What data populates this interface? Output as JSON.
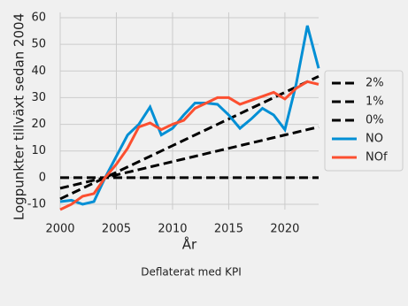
{
  "chart_data": {
    "type": "line",
    "ylabel": "Logpunkter tillväxt sedan 2004",
    "xlabel": "År",
    "note": "Deflaterat med KPI",
    "x": [
      2000,
      2001,
      2002,
      2003,
      2004,
      2005,
      2006,
      2007,
      2008,
      2009,
      2010,
      2011,
      2012,
      2013,
      2014,
      2015,
      2016,
      2017,
      2018,
      2019,
      2020,
      2021,
      2022,
      2023
    ],
    "series": [
      {
        "name": "2%",
        "color": "#000000",
        "linestyle": "dashed",
        "values": [
          -8,
          -6,
          -4,
          -2,
          0,
          2,
          4,
          6,
          8,
          10,
          12,
          14,
          16,
          18,
          20,
          22,
          24,
          26,
          28,
          30,
          32,
          34,
          36,
          38
        ]
      },
      {
        "name": "1%",
        "color": "#000000",
        "linestyle": "dashed",
        "values": [
          -4,
          -3,
          -2,
          -1,
          0,
          1,
          2,
          3,
          4,
          5,
          6,
          7,
          8,
          9,
          10,
          11,
          12,
          13,
          14,
          15,
          16,
          17,
          18,
          19
        ]
      },
      {
        "name": "0%",
        "color": "#000000",
        "linestyle": "dashed",
        "values": [
          0,
          0,
          0,
          0,
          0,
          0,
          0,
          0,
          0,
          0,
          0,
          0,
          0,
          0,
          0,
          0,
          0,
          0,
          0,
          0,
          0,
          0,
          0,
          0
        ]
      },
      {
        "name": "NO",
        "color": "#008fd5",
        "linestyle": "solid",
        "values": [
          -9,
          -8.5,
          -10,
          -9,
          0,
          8,
          16,
          20,
          26.5,
          16,
          18.5,
          23.5,
          28,
          28,
          27.5,
          23.5,
          18.5,
          22,
          26,
          23.5,
          18,
          35,
          57,
          41
        ]
      },
      {
        "name": "NOf",
        "color": "#fc4f30",
        "linestyle": "solid",
        "values": [
          -12,
          -10,
          -7,
          -6,
          0,
          5,
          11,
          19,
          20.5,
          18,
          20,
          21.5,
          26,
          28,
          30,
          30,
          27.5,
          29,
          30.5,
          32,
          29.5,
          33.5,
          36,
          35
        ]
      }
    ],
    "xlim": [
      2000,
      2023
    ],
    "ylim": [
      -12,
      62
    ],
    "xticks": [
      2000,
      2005,
      2010,
      2015,
      2020
    ],
    "yticks": [
      -10,
      0,
      10,
      20,
      30,
      40,
      50,
      60
    ],
    "grid": true,
    "legend": "right"
  }
}
